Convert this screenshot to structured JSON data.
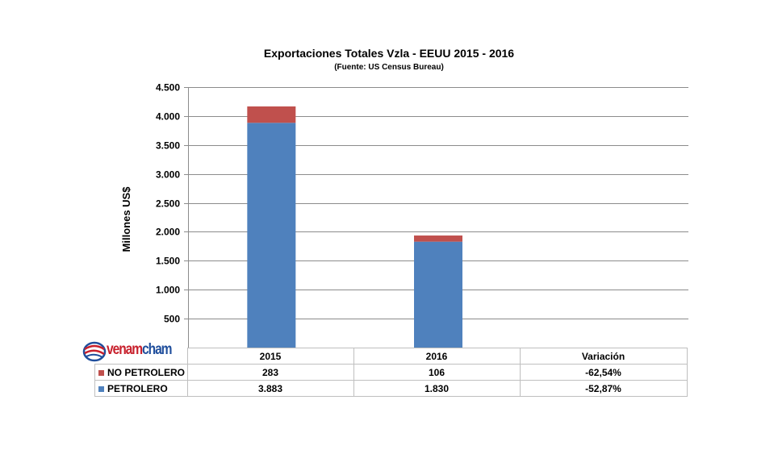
{
  "chart_data": {
    "type": "bar",
    "stacked": true,
    "title": "Exportaciones Totales Vzla - EEUU 2015 - 2016",
    "subtitle": "(Fuente: US Census Bureau)",
    "ylabel": "Millones US$",
    "ylim": [
      0,
      4500
    ],
    "yticks": [
      500,
      1000,
      1500,
      2000,
      2500,
      3000,
      3500,
      4000,
      4500
    ],
    "ytick_labels": [
      "500",
      "1.000",
      "1.500",
      "2.000",
      "2.500",
      "3.000",
      "3.500",
      "4.000",
      "4.500"
    ],
    "grid": true,
    "categories": [
      "2015",
      "2016"
    ],
    "series": [
      {
        "name": "PETROLERO",
        "values": [
          3883,
          1830
        ],
        "color": "#4f81bd"
      },
      {
        "name": "NO PETROLERO",
        "values": [
          283,
          106
        ],
        "color": "#c0504d"
      }
    ],
    "table": {
      "headers": [
        "2015",
        "2016",
        "Variación"
      ],
      "rows": [
        {
          "label": "NO PETROLERO",
          "color": "#c0504d",
          "cells": [
            "283",
            "106",
            "-62,54%"
          ]
        },
        {
          "label": "PETROLERO",
          "color": "#4f81bd",
          "cells": [
            "3.883",
            "1.830",
            "-52,87%"
          ]
        }
      ]
    }
  },
  "logo": {
    "text_a": "venam",
    "text_b": "cham"
  }
}
